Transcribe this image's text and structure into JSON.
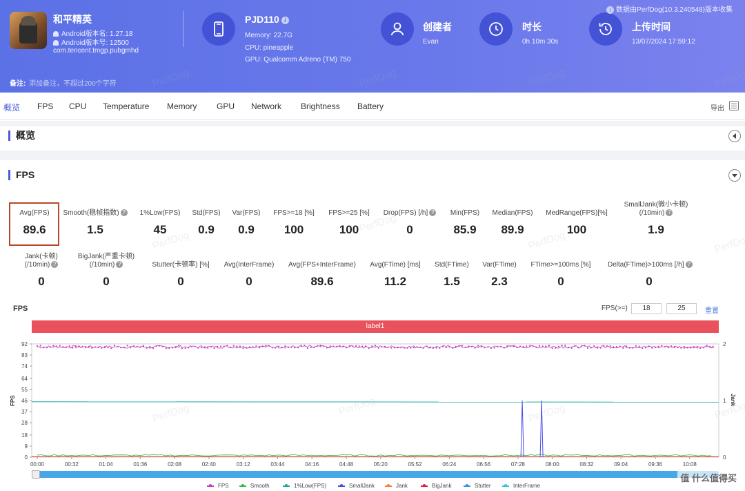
{
  "header": {
    "app_name": "和平精英",
    "android_version_name": "Android版本名: 1.27.18",
    "android_version_code": "Android版本号: 12500",
    "package": "com.tencent.tmgp.pubgmhd",
    "device": {
      "name": "PJD110",
      "memory": "Memory: 22.7G",
      "cpu": "CPU: pineapple",
      "gpu": "GPU: Qualcomm Adreno (TM) 750"
    },
    "creator": {
      "title": "创建者",
      "value": "Evan"
    },
    "duration": {
      "title": "时长",
      "value": "0h 10m 30s"
    },
    "upload": {
      "title": "上传时间",
      "value": "13/07/2024 17:59:12"
    },
    "perfdog_note": "数据由PerfDog(10.3.240548)版本收集",
    "note_label": "备注:",
    "note_placeholder": "添加备注，不超过200个字符"
  },
  "tabs": [
    "概览",
    "FPS",
    "CPU",
    "Temperature",
    "Memory",
    "GPU",
    "Network",
    "Brightness",
    "Battery"
  ],
  "export_label": "导出",
  "sections": {
    "overview": "概览",
    "fps": "FPS"
  },
  "metrics_row1": [
    {
      "label": "Avg(FPS)",
      "value": "89.6"
    },
    {
      "label": "Smooth(稳帧指数)",
      "value": "1.5"
    },
    {
      "label": "1%Low(FPS)",
      "value": "45"
    },
    {
      "label": "Std(FPS)",
      "value": "0.9"
    },
    {
      "label": "Var(FPS)",
      "value": "0.9"
    },
    {
      "label": "FPS>=18 [%]",
      "value": "100"
    },
    {
      "label": "FPS>=25 [%]",
      "value": "100"
    },
    {
      "label": "Drop(FPS) [/h]",
      "value": "0"
    },
    {
      "label": "Min(FPS)",
      "value": "85.9"
    },
    {
      "label": "Median(FPS)",
      "value": "89.9"
    },
    {
      "label": "MedRange(FPS)[%]",
      "value": "100"
    },
    {
      "label": "SmallJank(微小卡顿)",
      "label2": "(/10min)",
      "value": "1.9"
    }
  ],
  "metrics_row2": [
    {
      "label": "Jank(卡顿)",
      "label2": "(/10min)",
      "value": "0"
    },
    {
      "label": "BigJank(严重卡顿)",
      "label2": "(/10min)",
      "value": "0"
    },
    {
      "label": "Stutter(卡顿率) [%]",
      "value": "0"
    },
    {
      "label": "Avg(InterFrame)",
      "value": "0"
    },
    {
      "label": "Avg(FPS+InterFrame)",
      "value": "89.6"
    },
    {
      "label": "Avg(FTime) [ms]",
      "value": "11.2"
    },
    {
      "label": "Std(FTime)",
      "value": "1.5"
    },
    {
      "label": "Var(FTime)",
      "value": "2.3"
    },
    {
      "label": "FTime>=100ms [%]",
      "value": "0"
    },
    {
      "label": "Delta(FTime)>100ms [/h]",
      "value": "0"
    }
  ],
  "chart_controls": {
    "title": "FPS",
    "threshold_label": "FPS(>=)",
    "threshold1": "18",
    "threshold2": "25",
    "reset": "重置",
    "label_bar": "label1"
  },
  "watermark": "PerfDog",
  "brand": "值 什么值得买",
  "chart_data": {
    "type": "line",
    "ylabel": "FPS",
    "y2label": "Jank",
    "y_ticks": [
      0,
      9,
      18,
      28,
      37,
      46,
      55,
      64,
      74,
      83,
      92
    ],
    "y_range": [
      0,
      92
    ],
    "y2_ticks": [
      0,
      1,
      2
    ],
    "y2_range": [
      0,
      2
    ],
    "x_ticks": [
      "00:00",
      "00:32",
      "01:04",
      "01:36",
      "02:08",
      "02:40",
      "03:12",
      "03:44",
      "04:16",
      "04:48",
      "05:20",
      "05:52",
      "06:24",
      "06:56",
      "07:28",
      "08:00",
      "08:32",
      "09:04",
      "09:36",
      "10:08"
    ],
    "duration_seconds": 630,
    "series": [
      {
        "name": "FPS",
        "color": "#c23ec0",
        "baseline": 89.6,
        "min": 85.9,
        "max": 92
      },
      {
        "name": "Smooth",
        "color": "#3cb44b",
        "baseline": 1.5
      },
      {
        "name": "1%Low(FPS)",
        "color": "#1aa9a0",
        "values_desc": "steady",
        "baseline": 45
      },
      {
        "name": "SmallJank",
        "color": "#4b4be6",
        "spikes_seconds": [
          452,
          470
        ],
        "spike_value": 1
      },
      {
        "name": "Jank",
        "color": "#f58231",
        "baseline": 0
      },
      {
        "name": "BigJank",
        "color": "#e6194b",
        "baseline": 0
      },
      {
        "name": "Stutter",
        "color": "#3a8ee6",
        "baseline": 0
      },
      {
        "name": "InterFrame",
        "color": "#2fc6e0",
        "baseline": 0
      }
    ]
  }
}
